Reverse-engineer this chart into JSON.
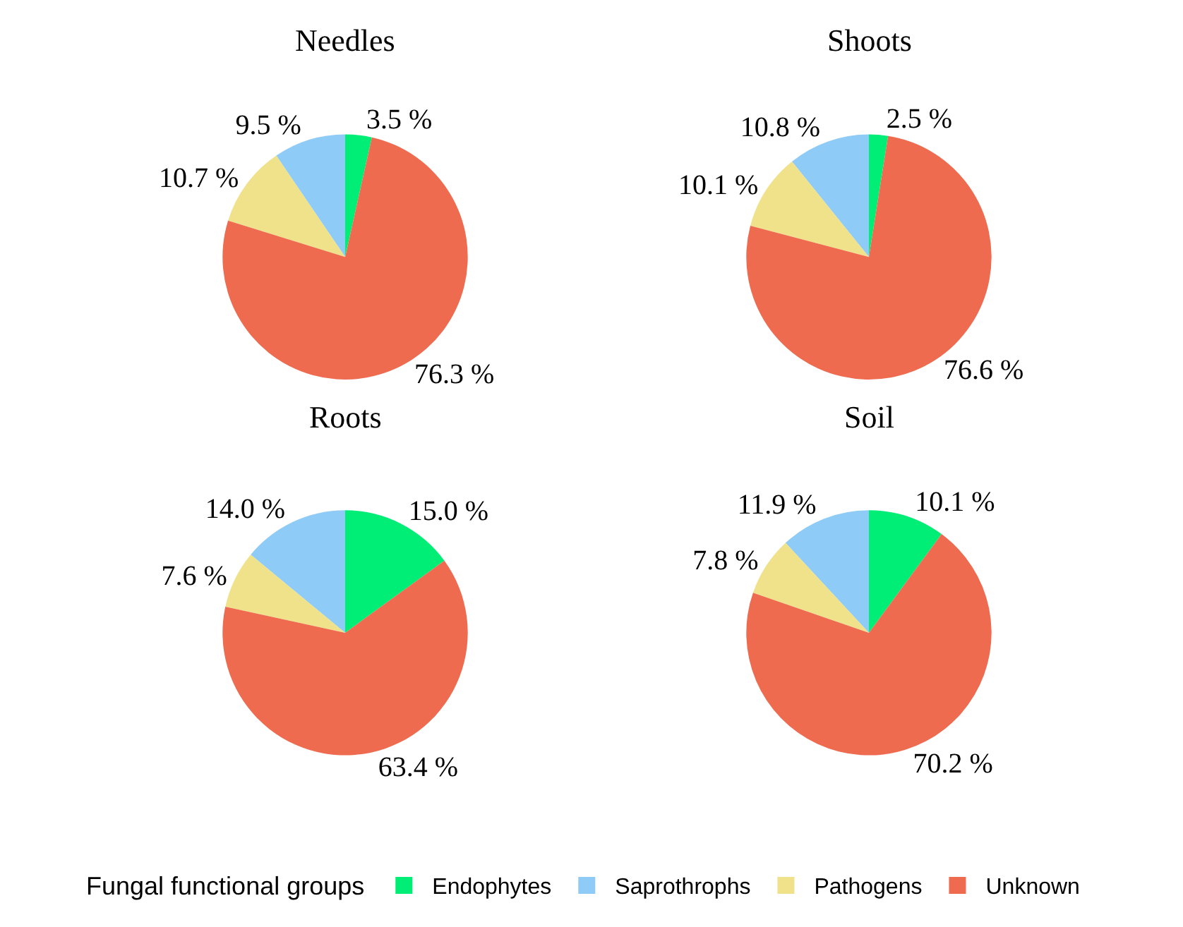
{
  "chart_data": [
    {
      "type": "pie",
      "title": "Needles",
      "categories": [
        "Endophytes",
        "Saprothrophs",
        "Pathogens",
        "Unknown"
      ],
      "values": [
        3.5,
        9.5,
        10.7,
        76.3
      ],
      "value_labels": [
        "3.5 %",
        "9.5 %",
        "10.7 %",
        "76.3 %"
      ],
      "colors": [
        "#00ee76",
        "#8ecbf7",
        "#efe28a",
        "#ee6b50"
      ],
      "legend": "bottom",
      "legend_title": "Fungal functional groups"
    },
    {
      "type": "pie",
      "title": "Shoots",
      "values": [
        2.5,
        10.8,
        10.1,
        76.6
      ],
      "value_labels": [
        "2.5 %",
        "10.8 %",
        "10.1 %",
        "76.6 %"
      ],
      "colors": [
        "#00ee76",
        "#8ecbf7",
        "#efe28a",
        "#ee6b50"
      ]
    },
    {
      "type": "pie",
      "title": "Roots",
      "values": [
        15.0,
        14.0,
        7.6,
        63.4
      ],
      "value_labels": [
        "15.0 %",
        "14.0 %",
        "7.6 %",
        "63.4 %"
      ],
      "colors": [
        "#00ee76",
        "#8ecbf7",
        "#efe28a",
        "#ee6b50"
      ]
    },
    {
      "type": "pie",
      "title": "Soil",
      "values": [
        10.1,
        11.9,
        7.8,
        70.2
      ],
      "value_labels": [
        "10.1 %",
        "11.9 %",
        "7.8 %",
        "70.2 %"
      ],
      "colors": [
        "#00ee76",
        "#8ecbf7",
        "#efe28a",
        "#ee6b50"
      ]
    }
  ]
}
